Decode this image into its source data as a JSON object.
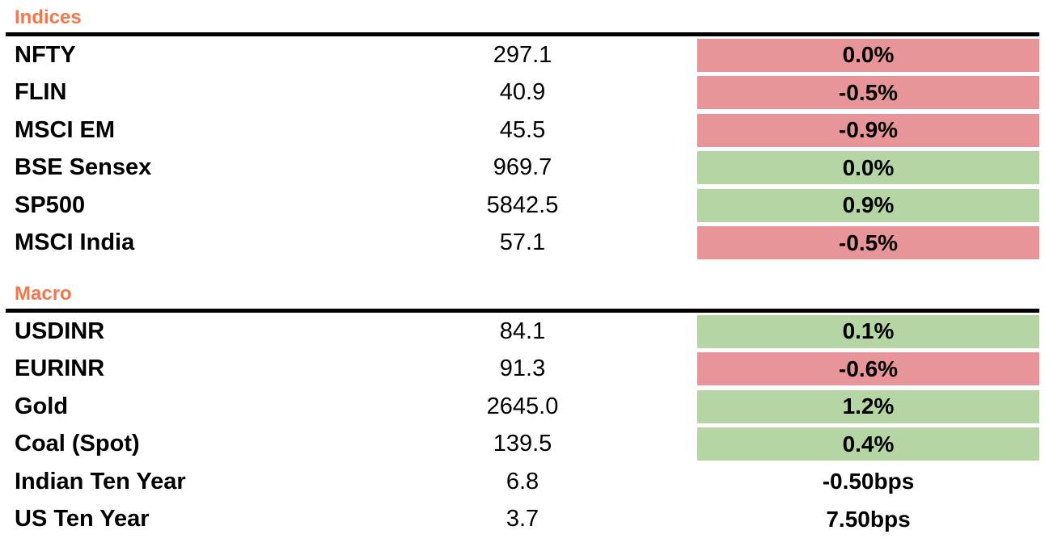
{
  "page": {
    "background": "#FFFFFF"
  },
  "colors": {
    "section_header_orange": "#F5764B",
    "positive_bg_green": "#B5D5A4",
    "negative_bg_red": "#E8959A",
    "rule_black": "#000000",
    "text": "#000000"
  },
  "chart_data": {
    "type": "table",
    "layout": {
      "columns": [
        "name",
        "value",
        "change"
      ],
      "change_cells_colored": true,
      "section_rule": "thick-black-horizontal"
    },
    "sections": [
      {
        "title": "Indices",
        "rows": [
          {
            "name": "NFTY",
            "value": 297.1,
            "change": "0.0%",
            "change_style": "negative"
          },
          {
            "name": "FLIN",
            "value": 40.9,
            "change": "-0.5%",
            "change_style": "negative"
          },
          {
            "name": "MSCI EM",
            "value": 45.5,
            "change": "-0.9%",
            "change_style": "negative"
          },
          {
            "name": "BSE Sensex",
            "value": 969.7,
            "change": "0.0%",
            "change_style": "positive"
          },
          {
            "name": "SP500",
            "value": 5842.5,
            "change": "0.9%",
            "change_style": "positive"
          },
          {
            "name": "MSCI India",
            "value": 57.1,
            "change": "-0.5%",
            "change_style": "negative"
          }
        ]
      },
      {
        "title": "Macro",
        "rows": [
          {
            "name": "USDINR",
            "value": 84.1,
            "change": "0.1%",
            "change_style": "positive"
          },
          {
            "name": "EURINR",
            "value": 91.3,
            "change": "-0.6%",
            "change_style": "negative"
          },
          {
            "name": "Gold",
            "value": 2645.0,
            "change": "1.2%",
            "change_style": "positive"
          },
          {
            "name": "Coal (Spot)",
            "value": 139.5,
            "change": "0.4%",
            "change_style": "positive"
          },
          {
            "name": "Indian Ten Year",
            "value": 6.8,
            "change": "-0.50bps",
            "change_style": "none"
          },
          {
            "name": "US Ten Year",
            "value": 3.7,
            "change": "7.50bps",
            "change_style": "none"
          }
        ]
      }
    ]
  }
}
